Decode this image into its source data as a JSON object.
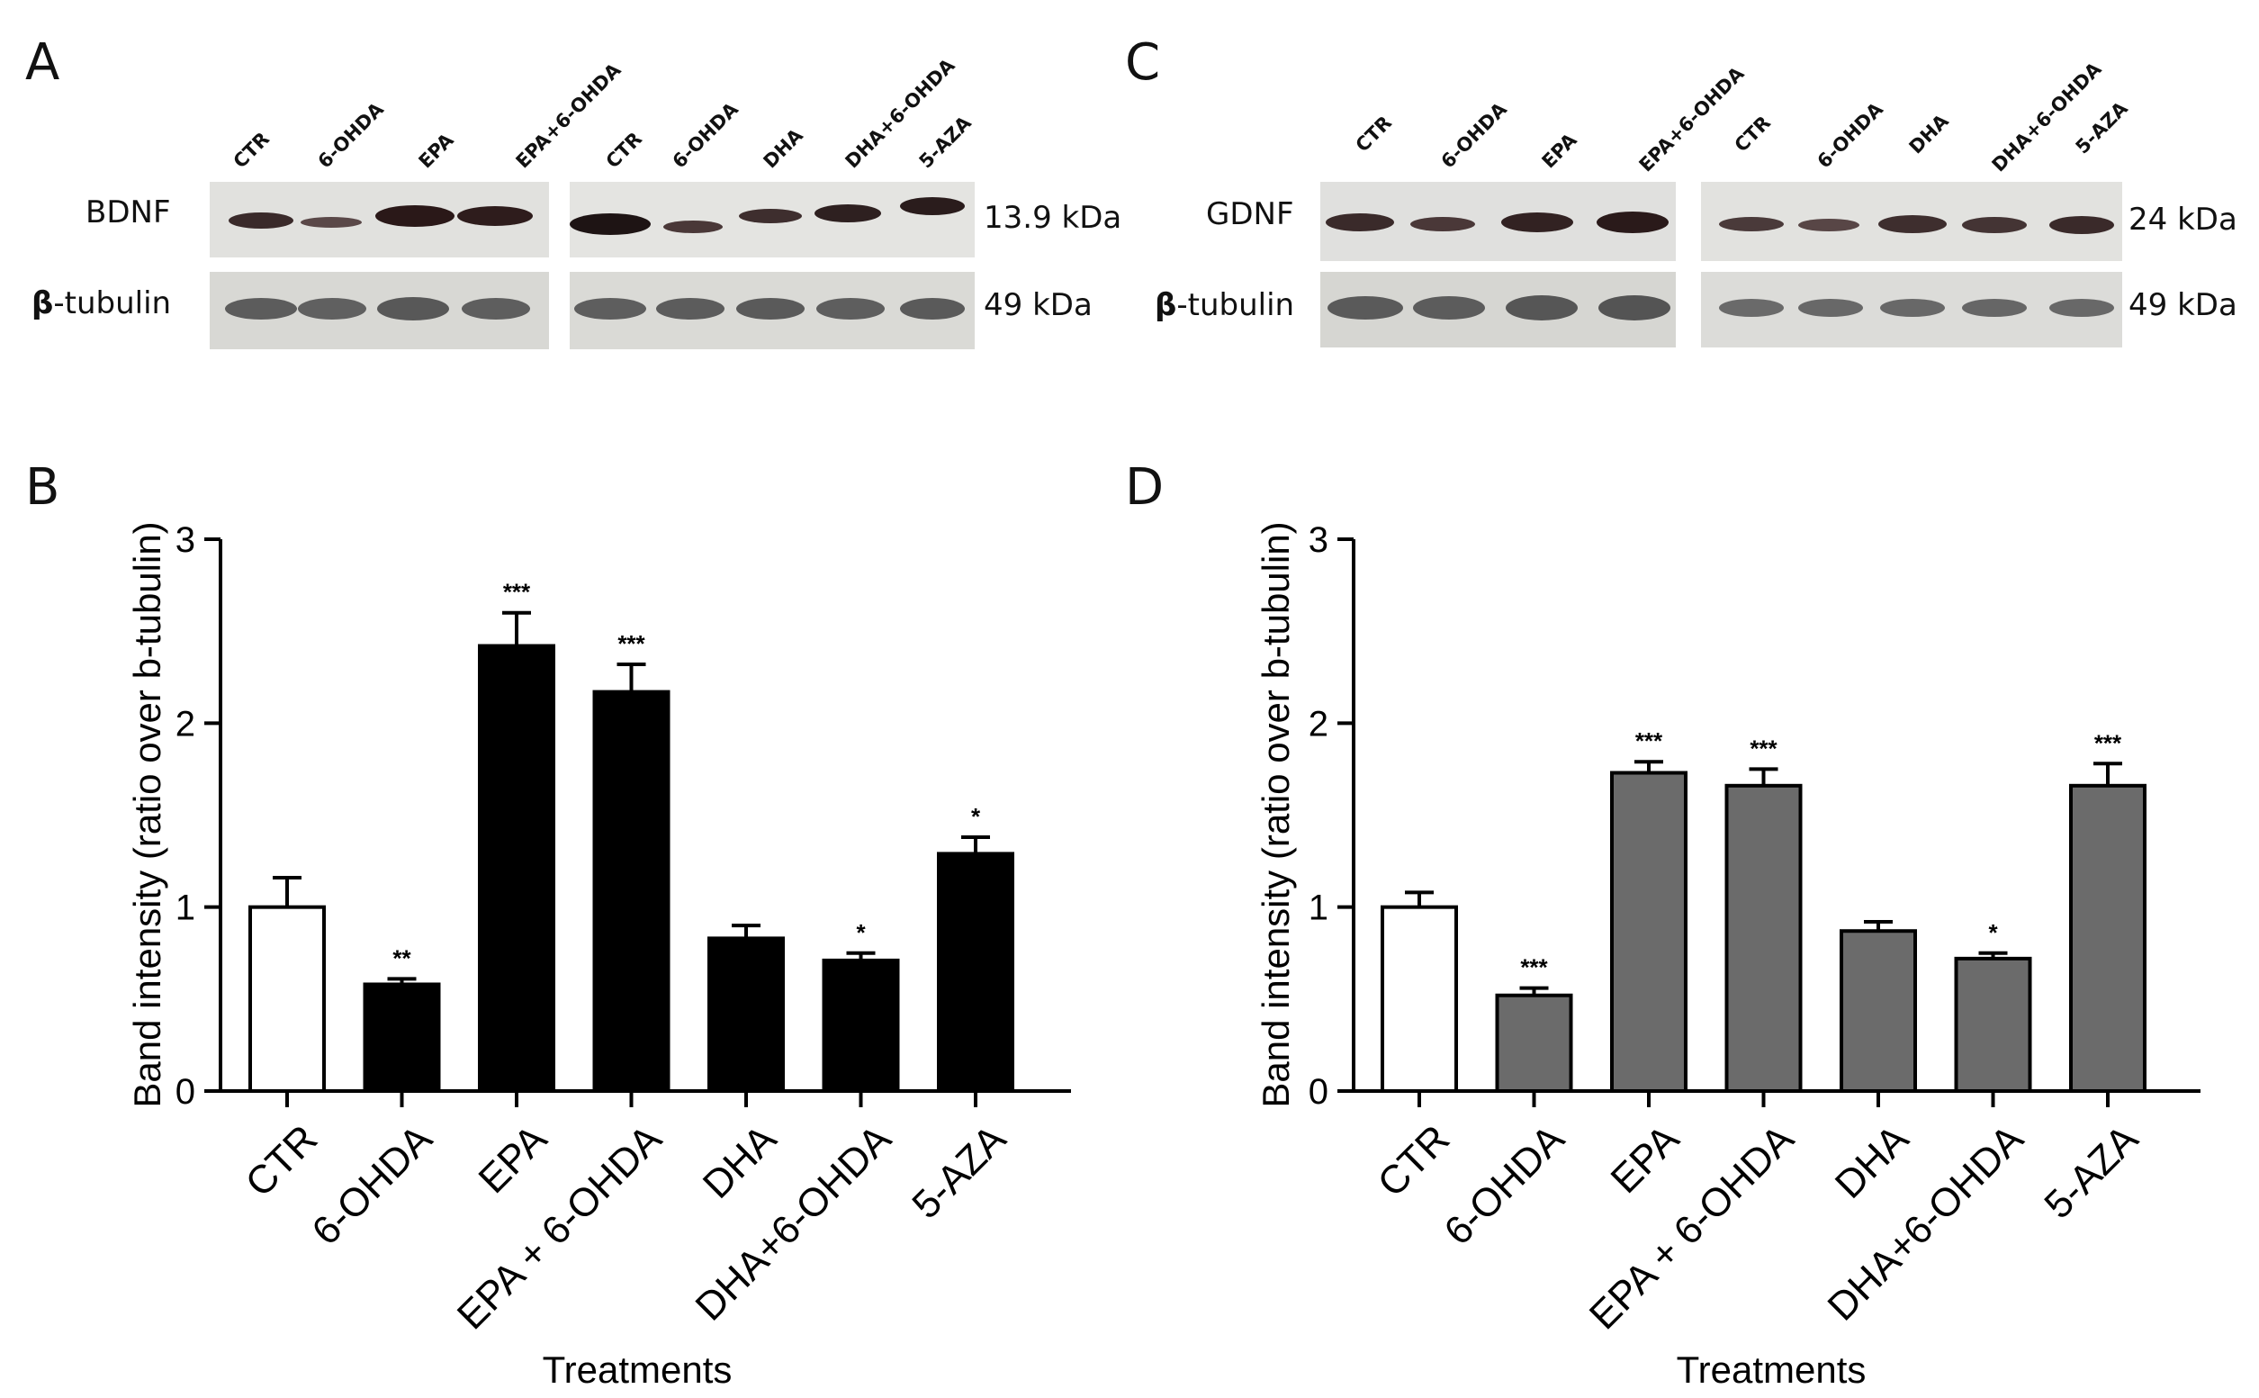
{
  "panels": {
    "a": "A",
    "b": "B",
    "c": "C",
    "d": "D"
  },
  "blot_a": {
    "protein_label": "BDNF",
    "loading_label_bold": "β",
    "loading_label_rest": "-tubulin",
    "protein_kda": "13.9 kDa",
    "loading_kda": "49 kDa",
    "lanes_left": [
      "CTR",
      "6-OHDA",
      "EPA",
      "EPA+6-OHDA"
    ],
    "lanes_right": [
      "CTR",
      "6-OHDA",
      "DHA",
      "DHA+6-OHDA",
      "5-AZA"
    ]
  },
  "blot_c": {
    "protein_label": "GDNF",
    "loading_label_bold": "β",
    "loading_label_rest": "-tubulin",
    "protein_kda": "24 kDa",
    "loading_kda": "49 kDa",
    "lanes_left": [
      "CTR",
      "6-OHDA",
      "EPA",
      "EPA+6-OHDA"
    ],
    "lanes_right": [
      "CTR",
      "6-OHDA",
      "DHA",
      "DHA+6-OHDA",
      "5-AZA"
    ]
  },
  "chart_data": [
    {
      "type": "bar",
      "panel": "B",
      "categories": [
        "CTR",
        "6-OHDA",
        "EPA",
        "EPA + 6-OHDA",
        "DHA",
        "DHA+6-OHDA",
        "5-AZA"
      ],
      "values": [
        1.0,
        0.58,
        2.42,
        2.17,
        0.83,
        0.71,
        1.29
      ],
      "errors": [
        0.16,
        0.03,
        0.18,
        0.15,
        0.07,
        0.04,
        0.09
      ],
      "significance": [
        "",
        "**",
        "***",
        "***",
        "",
        "*",
        "*"
      ],
      "bar_colors": [
        "#ffffff",
        "#000000",
        "#000000",
        "#000000",
        "#000000",
        "#000000",
        "#000000"
      ],
      "xlabel": "Treatments",
      "ylabel": "Band intensity (ratio over b-tubulin)",
      "ylim": [
        0,
        3
      ],
      "yticks": [
        "0",
        "1",
        "2",
        "3"
      ]
    },
    {
      "type": "bar",
      "panel": "D",
      "categories": [
        "CTR",
        "6-OHDA",
        "EPA",
        "EPA + 6-OHDA",
        "DHA",
        "DHA+6-OHDA",
        "5-AZA"
      ],
      "values": [
        1.0,
        0.52,
        1.73,
        1.66,
        0.87,
        0.72,
        1.66
      ],
      "errors": [
        0.08,
        0.04,
        0.06,
        0.09,
        0.05,
        0.03,
        0.12
      ],
      "significance": [
        "",
        "***",
        "***",
        "***",
        "",
        "*",
        "***"
      ],
      "bar_colors": [
        "#ffffff",
        "#6b6b6b",
        "#6b6b6b",
        "#6b6b6b",
        "#6b6b6b",
        "#6b6b6b",
        "#6b6b6b"
      ],
      "xlabel": "Treatments",
      "ylabel": "Band intensity (ratio over b-tubulin)",
      "ylim": [
        0,
        3
      ],
      "yticks": [
        "0",
        "1",
        "2",
        "3"
      ]
    }
  ]
}
